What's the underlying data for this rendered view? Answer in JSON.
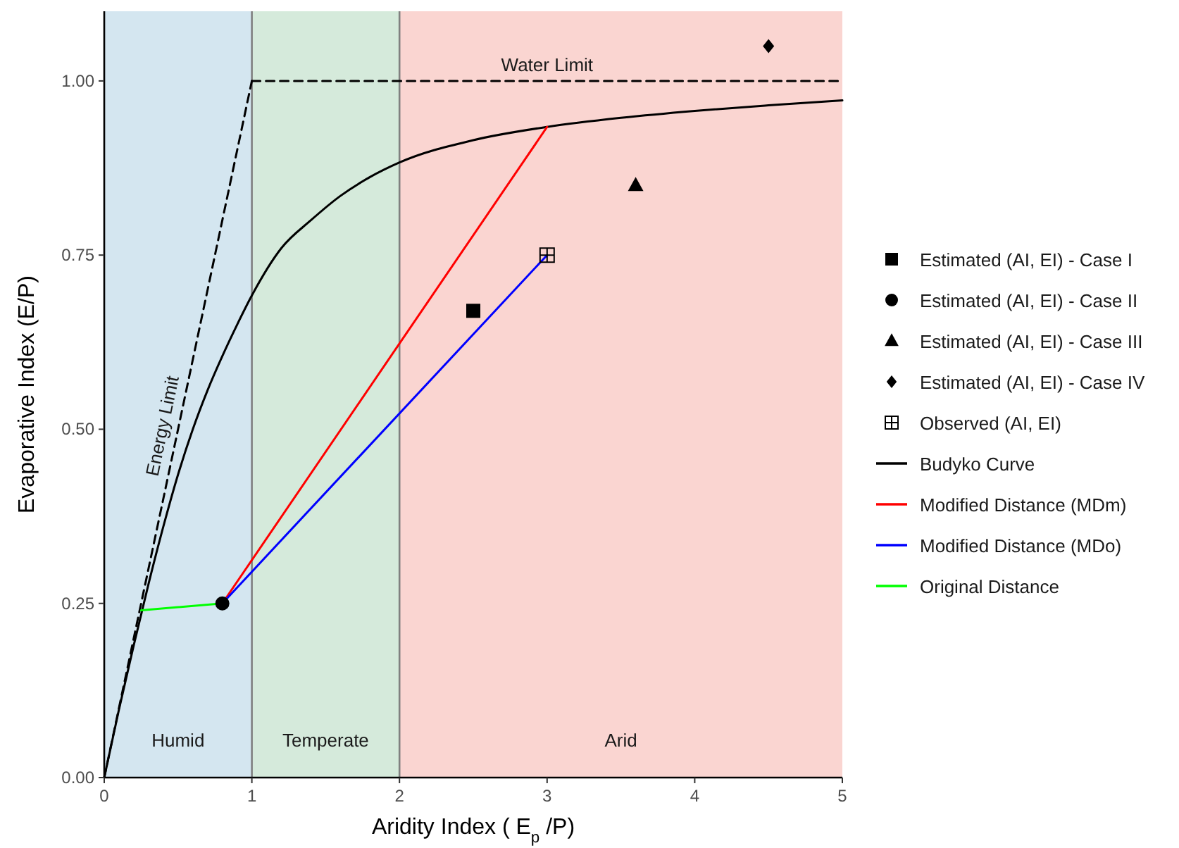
{
  "chart_data": {
    "type": "line",
    "xlabel": "Aridity Index ( E$_{p}$ /P)",
    "ylabel": "Evaporative Index (E/P)",
    "xlim": [
      0,
      5
    ],
    "ylim": [
      0,
      1.1
    ],
    "xticks": [
      0,
      1,
      2,
      3,
      4,
      5
    ],
    "yticks": [
      {
        "value": 0,
        "label": "0.00"
      },
      {
        "value": 0.25,
        "label": "0.25"
      },
      {
        "value": 0.5,
        "label": "0.50"
      },
      {
        "value": 0.75,
        "label": "0.75"
      },
      {
        "value": 1,
        "label": "1.00"
      }
    ],
    "grid": false,
    "legend": "right",
    "bands": [
      {
        "axis": "x",
        "from": 0,
        "to": 1,
        "label": "Humid",
        "color": "#d4e6f0"
      },
      {
        "axis": "x",
        "from": 1,
        "to": 2,
        "label": "Temperate",
        "color": "#d5eadb"
      },
      {
        "axis": "x",
        "from": 2,
        "to": 5,
        "label": "Arid",
        "color": "#fad5d1"
      }
    ],
    "ref_lines": [
      {
        "axis": "x",
        "value": 1,
        "color": "#808080"
      },
      {
        "axis": "x",
        "value": 2,
        "color": "#808080"
      }
    ],
    "series": [
      {
        "name": "Energy Limit",
        "line_style": "dashed",
        "color": "#000000",
        "x": [
          0,
          1
        ],
        "values": [
          0,
          1
        ]
      },
      {
        "name": "Water Limit",
        "line_style": "dashed",
        "color": "#000000",
        "x": [
          1,
          5
        ],
        "values": [
          1,
          1
        ]
      },
      {
        "name": "Estimated (AI, EI) - Case I",
        "type": "scatter",
        "marker": "square",
        "color": "#000000",
        "x": [
          2.5
        ],
        "values": [
          0.67
        ]
      },
      {
        "name": "Estimated (AI, EI) - Case II",
        "type": "scatter",
        "marker": "circle",
        "color": "#000000",
        "x": [
          0.8
        ],
        "values": [
          0.25
        ]
      },
      {
        "name": "Estimated (AI, EI) - Case III",
        "type": "scatter",
        "marker": "triangle",
        "color": "#000000",
        "x": [
          3.6
        ],
        "values": [
          0.85
        ]
      },
      {
        "name": "Estimated (AI, EI) - Case IV",
        "type": "scatter",
        "marker": "diamond",
        "color": "#000000",
        "x": [
          4.5
        ],
        "values": [
          1.05
        ]
      },
      {
        "name": "Observed (AI, EI)",
        "type": "scatter",
        "marker": "cross",
        "color": "#000000",
        "x": [
          3
        ],
        "values": [
          0.75
        ]
      },
      {
        "name": "Budyko Curve",
        "line_style": "solid",
        "color": "#000000",
        "x": [
          0,
          0.1,
          0.2,
          0.3,
          0.4,
          0.5,
          0.6,
          0.7,
          0.8,
          0.9,
          1,
          1.2,
          1.4,
          1.6,
          1.8,
          2,
          2.5,
          3,
          3.5,
          4,
          4.5,
          5
        ],
        "values": [
          0,
          0.098,
          0.19,
          0.278,
          0.36,
          0.435,
          0.5,
          0.556,
          0.605,
          0.65,
          0.692,
          0.76,
          0.8,
          0.835,
          0.862,
          0.883,
          0.915,
          0.934,
          0.947,
          0.957,
          0.965,
          0.972
        ]
      },
      {
        "name": "Modified Distance (MDm)",
        "line_style": "solid",
        "color": "#ff0000",
        "x": [
          0.8,
          3
        ],
        "values": [
          0.25,
          0.934
        ]
      },
      {
        "name": "Modified Distance (MDo)",
        "line_style": "solid",
        "color": "#0000ff",
        "x": [
          0.8,
          3
        ],
        "values": [
          0.25,
          0.75
        ]
      },
      {
        "name": "Original Distance",
        "line_style": "solid",
        "color": "#00ff00",
        "x": [
          0.25,
          0.8
        ],
        "values": [
          0.24,
          0.25
        ]
      }
    ]
  }
}
